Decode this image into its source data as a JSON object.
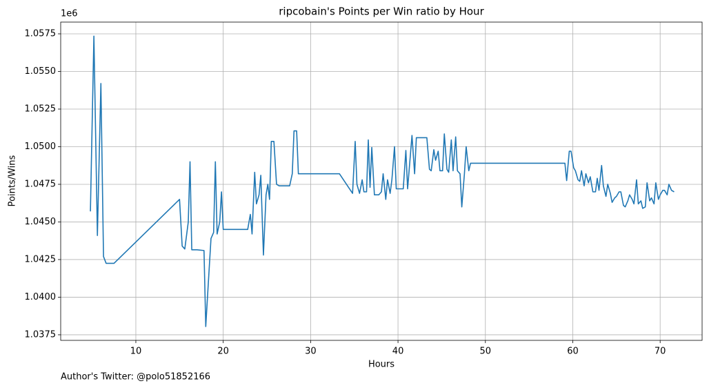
{
  "chart_data": {
    "type": "line",
    "title": "ripcobain's Points per Win ratio by Hour",
    "xlabel": "Hours",
    "ylabel": "Points/Wins",
    "y_offset_label": "1e6",
    "annotation": "Author's Twitter: @polo51852166",
    "grid": true,
    "xlim": [
      1.4,
      74.8
    ],
    "ylim": [
      1037130,
      1058280
    ],
    "xticks": [
      10,
      20,
      30,
      40,
      50,
      60,
      70
    ],
    "yticks": [
      {
        "value": 1037500,
        "label": "1.0375"
      },
      {
        "value": 1040000,
        "label": "1.0400"
      },
      {
        "value": 1042500,
        "label": "1.0425"
      },
      {
        "value": 1045000,
        "label": "1.0450"
      },
      {
        "value": 1047500,
        "label": "1.0475"
      },
      {
        "value": 1050000,
        "label": "1.0500"
      },
      {
        "value": 1052500,
        "label": "1.0525"
      },
      {
        "value": 1055000,
        "label": "1.0550"
      },
      {
        "value": 1057500,
        "label": "1.0575"
      }
    ],
    "series": [
      {
        "color": "#1f77b4",
        "x": [
          4.8,
          5.2,
          5.6,
          6.0,
          6.3,
          6.6,
          7.0,
          7.5,
          15.0,
          15.3,
          15.6,
          16.0,
          16.2,
          16.4,
          17.0,
          17.8,
          18.0,
          18.3,
          18.6,
          18.9,
          19.1,
          19.3,
          19.6,
          19.8,
          20.0,
          22.8,
          23.1,
          23.3,
          23.6,
          23.8,
          24.1,
          24.3,
          24.6,
          24.9,
          25.1,
          25.3,
          25.5,
          25.8,
          26.1,
          26.4,
          27.6,
          27.9,
          28.1,
          28.4,
          28.6,
          33.3,
          34.8,
          35.1,
          35.3,
          35.6,
          35.9,
          36.1,
          36.4,
          36.6,
          36.8,
          37.0,
          37.3,
          37.8,
          38.1,
          38.3,
          38.6,
          38.8,
          39.1,
          39.3,
          39.6,
          39.8,
          40.6,
          40.9,
          41.1,
          41.6,
          41.9,
          42.1,
          43.3,
          43.6,
          43.8,
          44.1,
          44.3,
          44.6,
          44.8,
          45.1,
          45.3,
          45.6,
          45.8,
          46.1,
          46.3,
          46.6,
          46.8,
          47.1,
          47.3,
          47.6,
          47.8,
          48.1,
          48.3,
          59.1,
          59.3,
          59.6,
          59.8,
          60.1,
          60.3,
          60.6,
          60.8,
          61.0,
          61.3,
          61.5,
          61.8,
          62.0,
          62.3,
          62.6,
          62.8,
          63.0,
          63.3,
          63.5,
          63.8,
          64.0,
          64.3,
          64.5,
          64.8,
          65.0,
          65.3,
          65.5,
          65.8,
          66.0,
          66.3,
          66.5,
          66.8,
          67.0,
          67.3,
          67.5,
          67.8,
          68.0,
          68.3,
          68.5,
          68.8,
          69.0,
          69.3,
          69.5,
          69.8,
          70.0,
          70.3,
          70.5,
          70.8,
          71.0,
          71.3,
          71.6
        ],
        "values": [
          1045700,
          1057350,
          1044100,
          1054200,
          1042700,
          1042250,
          1042250,
          1042250,
          1046500,
          1043400,
          1043200,
          1045000,
          1049000,
          1043150,
          1043150,
          1043100,
          1038050,
          1041000,
          1043900,
          1044300,
          1049000,
          1044200,
          1045000,
          1047000,
          1044500,
          1044500,
          1045500,
          1044200,
          1048300,
          1046200,
          1046800,
          1048100,
          1042800,
          1046800,
          1047500,
          1046500,
          1050350,
          1050350,
          1047500,
          1047400,
          1047400,
          1048200,
          1051050,
          1051050,
          1048200,
          1048200,
          1046900,
          1050350,
          1047500,
          1046900,
          1047800,
          1047000,
          1047000,
          1050450,
          1047300,
          1049950,
          1046800,
          1046800,
          1047000,
          1048200,
          1046500,
          1047800,
          1046900,
          1047800,
          1050000,
          1047200,
          1047200,
          1049750,
          1047200,
          1050750,
          1048200,
          1050600,
          1050600,
          1048500,
          1048400,
          1049800,
          1049100,
          1049700,
          1048400,
          1048400,
          1050850,
          1048500,
          1048300,
          1050450,
          1048400,
          1050650,
          1048400,
          1048200,
          1046000,
          1048200,
          1050000,
          1048400,
          1048900,
          1048900,
          1047750,
          1049700,
          1049700,
          1048600,
          1048400,
          1047800,
          1047700,
          1048400,
          1047400,
          1048200,
          1047600,
          1048000,
          1047000,
          1047000,
          1047900,
          1047100,
          1048750,
          1047400,
          1046700,
          1047500,
          1046900,
          1046300,
          1046600,
          1046700,
          1047000,
          1047000,
          1046100,
          1046000,
          1046400,
          1046800,
          1046500,
          1046200,
          1047800,
          1046200,
          1046400,
          1045900,
          1046000,
          1047600,
          1046400,
          1046600,
          1046200,
          1047600,
          1046500,
          1046800,
          1047100,
          1047100,
          1046800,
          1047500,
          1047100,
          1047000
        ]
      }
    ]
  }
}
